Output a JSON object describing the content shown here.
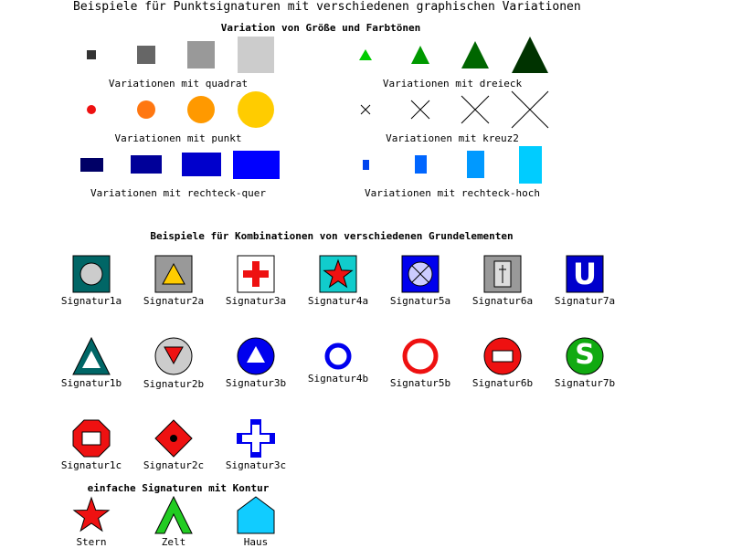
{
  "title": "Beispiele für Punktsignaturen mit verschiedenen graphischen Variationen",
  "section_variations": {
    "heading": "Variation von Größe und Farbtönen",
    "groups": [
      {
        "id": "quadrat",
        "label": "Variationen mit quadrat",
        "colors": [
          "#333333",
          "#666666",
          "#999999",
          "#cccccc"
        ]
      },
      {
        "id": "dreieck",
        "label": "Variationen mit dreieck",
        "colors": [
          "#00cc00",
          "#009900",
          "#006600",
          "#003300"
        ]
      },
      {
        "id": "punkt",
        "label": "Variationen mit punkt",
        "colors": [
          "#ee1111",
          "#ff7711",
          "#ff9900",
          "#ffcc00"
        ]
      },
      {
        "id": "kreuz2",
        "label": "Variationen mit kreuz2",
        "colors": [
          "#000000",
          "#000000",
          "#000000",
          "#000000"
        ]
      },
      {
        "id": "rechteck-quer",
        "label": "Variationen mit rechteck-quer",
        "colors": [
          "#000066",
          "#000099",
          "#0000cc",
          "#0000ff"
        ]
      },
      {
        "id": "rechteck-hoch",
        "label": "Variationen mit rechteck-hoch",
        "colors": [
          "#0044ee",
          "#0066ff",
          "#0099ff",
          "#00ccff"
        ]
      }
    ]
  },
  "section_combinations": {
    "heading": "Beispiele für Kombinationen von verschiedenen Grundelementen",
    "signatures": [
      {
        "id": "1a",
        "label": "Signatur1a"
      },
      {
        "id": "2a",
        "label": "Signatur2a"
      },
      {
        "id": "3a",
        "label": "Signatur3a"
      },
      {
        "id": "4a",
        "label": "Signatur4a"
      },
      {
        "id": "5a",
        "label": "Signatur5a"
      },
      {
        "id": "6a",
        "label": "Signatur6a"
      },
      {
        "id": "7a",
        "label": "Signatur7a"
      },
      {
        "id": "1b",
        "label": "Signatur1b"
      },
      {
        "id": "2b",
        "label": "Signatur2b"
      },
      {
        "id": "3b",
        "label": "Signatur3b"
      },
      {
        "id": "4b",
        "label": "Signatur4b"
      },
      {
        "id": "5b",
        "label": "Signatur5b"
      },
      {
        "id": "6b",
        "label": "Signatur6b"
      },
      {
        "id": "7b",
        "label": "Signatur7b"
      },
      {
        "id": "1c",
        "label": "Signatur1c"
      },
      {
        "id": "2c",
        "label": "Signatur2c"
      },
      {
        "id": "3c",
        "label": "Signatur3c"
      }
    ]
  },
  "section_contour": {
    "heading": "einfache Signaturen mit Kontur",
    "items": [
      {
        "id": "stern",
        "label": "Stern",
        "color": "#ee1111"
      },
      {
        "id": "zelt",
        "label": "Zelt",
        "color": "#22cc22"
      },
      {
        "id": "haus",
        "label": "Haus",
        "color": "#11ccff"
      }
    ]
  },
  "glyphs": {
    "signatur7a": "U",
    "signatur7b": "S"
  }
}
